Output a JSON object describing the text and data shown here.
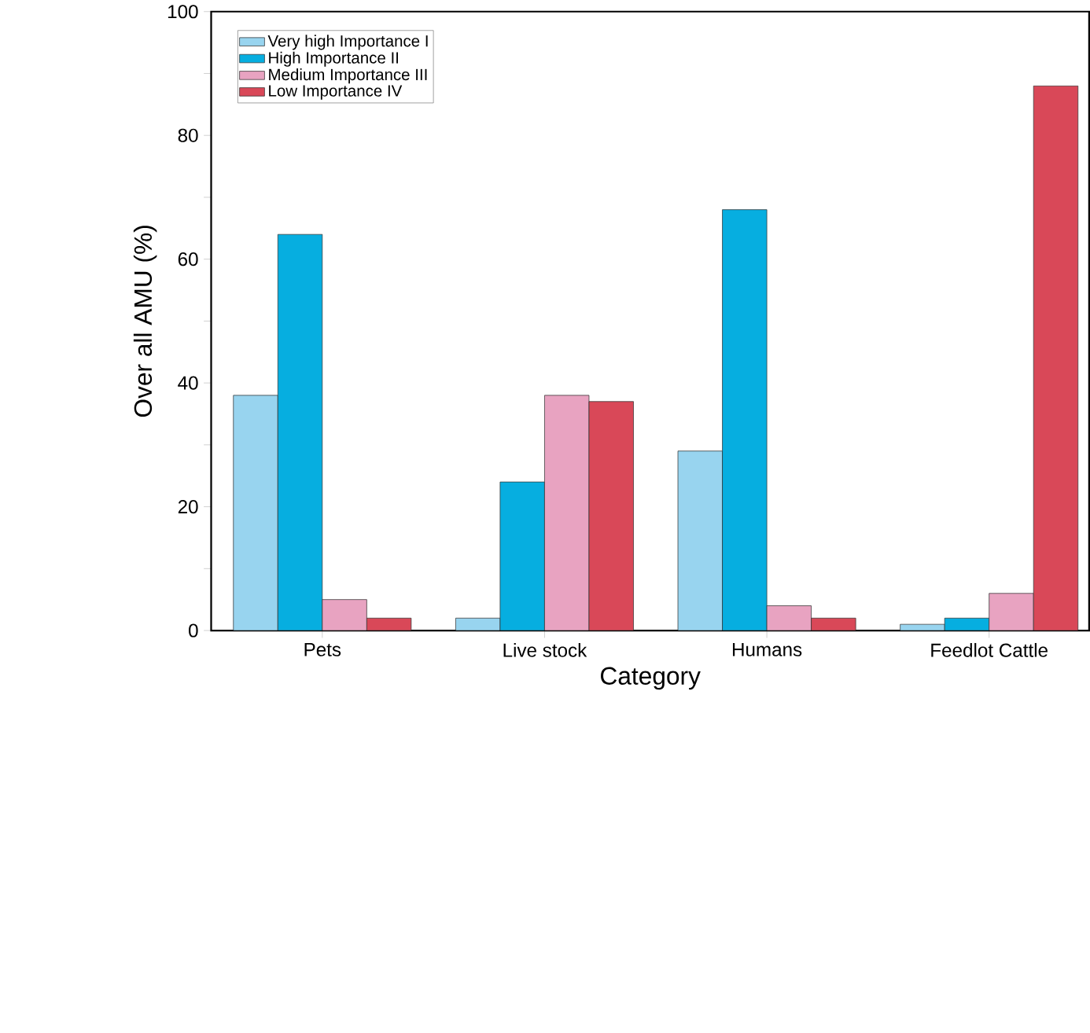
{
  "chart_data": {
    "type": "bar",
    "xlabel": "Category",
    "ylabel": "Over all AMU (%)",
    "categories": [
      "Pets",
      "Live stock",
      "Humans",
      "Feedlot Cattle"
    ],
    "series": [
      {
        "name": "Very high Importance I",
        "color": "#98d4ef",
        "values": [
          38,
          2,
          29,
          1
        ]
      },
      {
        "name": "High Importance II",
        "color": "#06aee0",
        "values": [
          64,
          24,
          68,
          2
        ]
      },
      {
        "name": "Medium Importance III",
        "color": "#e8a3c1",
        "values": [
          5,
          38,
          4,
          6
        ]
      },
      {
        "name": "Low Importance IV",
        "color": "#d94858",
        "values": [
          2,
          37,
          2,
          88
        ]
      }
    ],
    "ylim": [
      0,
      100
    ],
    "yticks": [
      0,
      {
        "value": 10,
        "label": null
      },
      20,
      {
        "value": 30,
        "label": null
      },
      40,
      {
        "value": 50,
        "label": null
      },
      60,
      {
        "value": 70,
        "label": null
      },
      80,
      {
        "value": 90,
        "label": null
      },
      100
    ],
    "legend": "top left",
    "grid": false
  }
}
